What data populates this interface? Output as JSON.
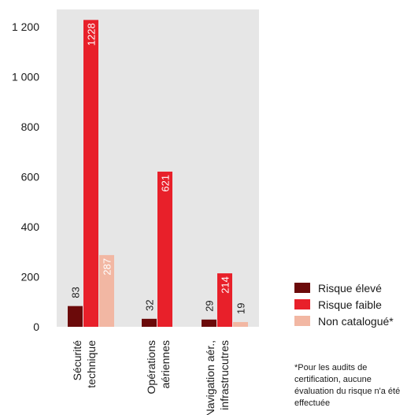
{
  "chart_data": {
    "type": "bar",
    "categories": [
      [
        "Sécurité",
        "technique"
      ],
      [
        "Opérations",
        "aériennes"
      ],
      [
        "Navigation aér.,",
        "infrastrucutres"
      ]
    ],
    "series": [
      {
        "name": "Risque élevé",
        "color": "#6b0a0a",
        "values": [
          83,
          32,
          29
        ]
      },
      {
        "name": "Risque faible",
        "color": "#e8202a",
        "values": [
          1228,
          621,
          214
        ]
      },
      {
        "name": "Non catalogué*",
        "color": "#f2b7a3",
        "values": [
          287,
          null,
          19
        ]
      }
    ],
    "yticks": [
      0,
      200,
      400,
      600,
      800,
      1000,
      1200
    ],
    "ytick_labels": [
      "0",
      "200",
      "400",
      "600",
      "800",
      "1 000",
      "1 200"
    ],
    "ylim": [
      0,
      1270
    ],
    "title": "",
    "xlabel": "",
    "ylabel": "",
    "legend_position": "bottom-right"
  },
  "footnote": "*Pour les audits de certification, aucune évaluation du risque n'a été effectuée"
}
